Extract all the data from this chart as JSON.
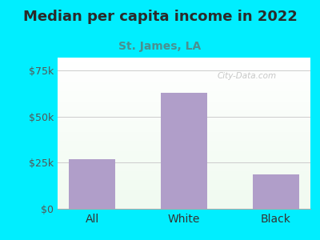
{
  "title": "Median per capita income in 2022",
  "subtitle": "St. James, LA",
  "categories": [
    "All",
    "White",
    "Black"
  ],
  "values": [
    27000,
    63000,
    18500
  ],
  "bar_color": "#b09ec9",
  "title_color": "#2a2a2a",
  "subtitle_color": "#4a9090",
  "outer_bg": "#00eeff",
  "yticks": [
    0,
    25000,
    50000,
    75000
  ],
  "ytick_labels": [
    "$0",
    "$25k",
    "$50k",
    "$75k"
  ],
  "ylim": [
    0,
    82000
  ],
  "watermark": "City-Data.com",
  "title_fontsize": 13,
  "subtitle_fontsize": 10,
  "tick_fontsize": 9,
  "bar_width": 0.5
}
